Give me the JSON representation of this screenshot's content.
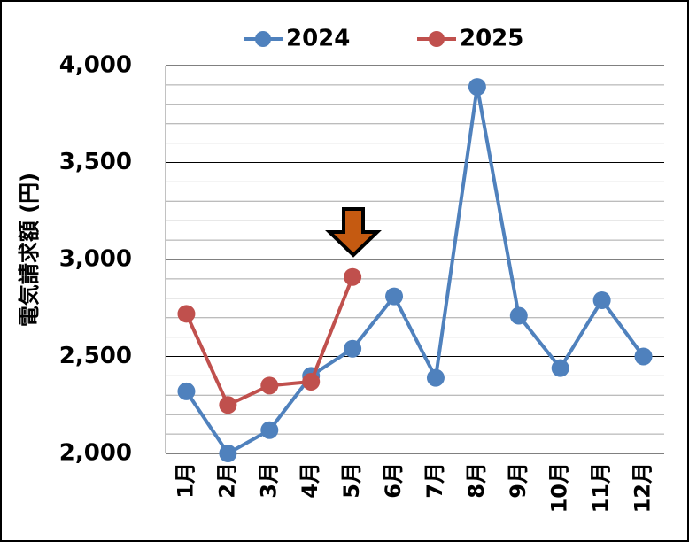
{
  "chart_data": {
    "type": "line",
    "y_label": "電気請求額 (円)",
    "categories": [
      "1月",
      "2月",
      "3月",
      "4月",
      "5月",
      "6月",
      "7月",
      "8月",
      "9月",
      "10月",
      "11月",
      "12月"
    ],
    "series": [
      {
        "name": "2024",
        "color": "#4f81bd",
        "values": [
          2320,
          2000,
          2120,
          2400,
          2540,
          2810,
          2390,
          3890,
          2710,
          2440,
          2790,
          2500
        ]
      },
      {
        "name": "2025",
        "color": "#c0504d",
        "values": [
          2720,
          2250,
          2350,
          2370,
          2910,
          null,
          null,
          null,
          null,
          null,
          null,
          null
        ]
      }
    ],
    "ylim": [
      2000,
      4000
    ],
    "yticks": [
      {
        "value": 2000,
        "label": "2,000"
      },
      {
        "value": 2500,
        "label": "2,500"
      },
      {
        "value": 3000,
        "label": "3,000"
      },
      {
        "value": 3500,
        "label": "3,500"
      },
      {
        "value": 4000,
        "label": "4,000"
      }
    ],
    "grid": true,
    "legend": "top"
  }
}
